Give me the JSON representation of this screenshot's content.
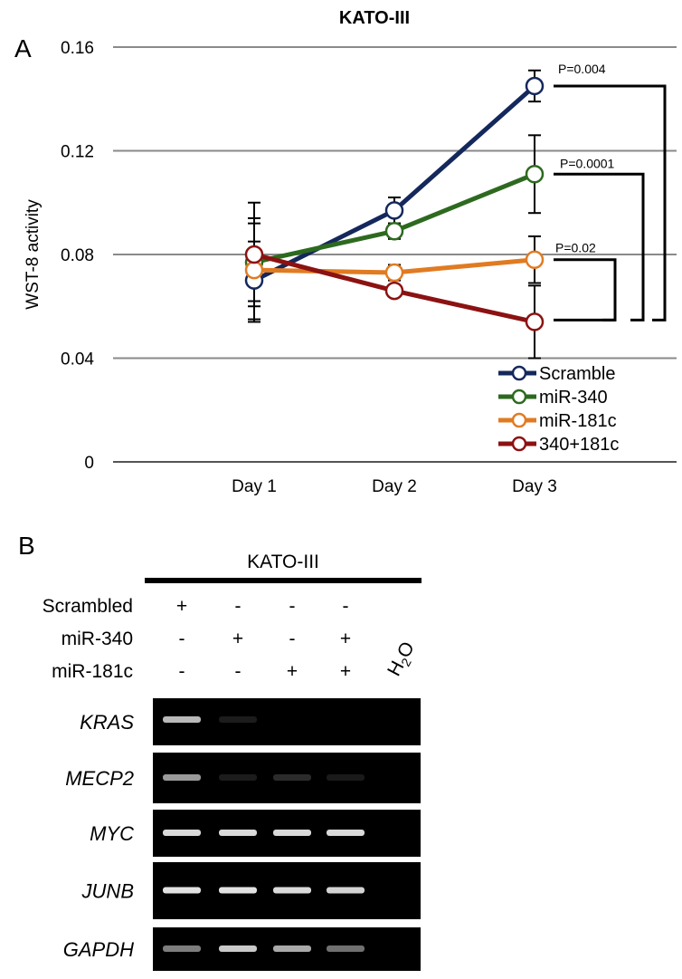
{
  "panel_a": {
    "label": "A"
  },
  "panel_b": {
    "label": "B",
    "cell_line": "KATO-III",
    "conditions": [
      {
        "name": "Scrambled",
        "marks": [
          "+",
          "-",
          "-",
          "-"
        ]
      },
      {
        "name": "miR-340",
        "marks": [
          "-",
          "+",
          "-",
          "+"
        ]
      },
      {
        "name": "miR-181c",
        "marks": [
          "-",
          "-",
          "+",
          "+"
        ]
      }
    ],
    "water_lane": {
      "base": "H",
      "subscript": "2",
      "tail": "O"
    },
    "genes": [
      {
        "name": "KRAS",
        "bands": [
          0.8,
          0.12,
          0.0,
          0.0,
          0.0
        ]
      },
      {
        "name": "MECP2",
        "bands": [
          0.7,
          0.12,
          0.22,
          0.1,
          0.0
        ]
      },
      {
        "name": "MYC",
        "bands": [
          0.9,
          0.9,
          0.9,
          0.9,
          0.0
        ]
      },
      {
        "name": "JUNB",
        "bands": [
          0.92,
          0.92,
          0.9,
          0.88,
          0.0
        ]
      },
      {
        "name": "GAPDH",
        "bands": [
          0.6,
          0.85,
          0.75,
          0.55,
          0.0
        ]
      }
    ]
  },
  "chart_data": {
    "type": "line",
    "title": "KATO-III",
    "xlabel": "",
    "ylabel": "WST-8 activity",
    "categories": [
      "Day 1",
      "Day 2",
      "Day 3"
    ],
    "ylim": [
      0,
      0.16
    ],
    "yticks": [
      "0",
      "0.04",
      "0.08",
      "0.12",
      "0.16"
    ],
    "grid": true,
    "legend_position": "bottom-right",
    "series": [
      {
        "name": "Scramble",
        "color": "#14285c",
        "values": [
          0.07,
          0.097,
          0.145
        ],
        "errors": [
          0.015,
          0.005,
          0.006
        ]
      },
      {
        "name": "miR-340",
        "color": "#2d6a1f",
        "values": [
          0.077,
          0.089,
          0.111
        ],
        "errors": [
          0.015,
          0.003,
          0.015
        ]
      },
      {
        "name": "miR-181c",
        "color": "#e07b22",
        "values": [
          0.074,
          0.073,
          0.078
        ],
        "errors": [
          0.02,
          0.003,
          0.009
        ]
      },
      {
        "name": "340+181c",
        "color": "#8c1212",
        "values": [
          0.08,
          0.066,
          0.054
        ],
        "errors": [
          0.02,
          0.002,
          0.014
        ]
      }
    ],
    "significance": [
      {
        "label": "P=0.004",
        "from": "Scramble",
        "to": "340+181c"
      },
      {
        "label": "P=0.0001",
        "from": "miR-340",
        "to": "340+181c"
      },
      {
        "label": "P=0.02",
        "from": "miR-181c",
        "to": "340+181c"
      }
    ]
  }
}
